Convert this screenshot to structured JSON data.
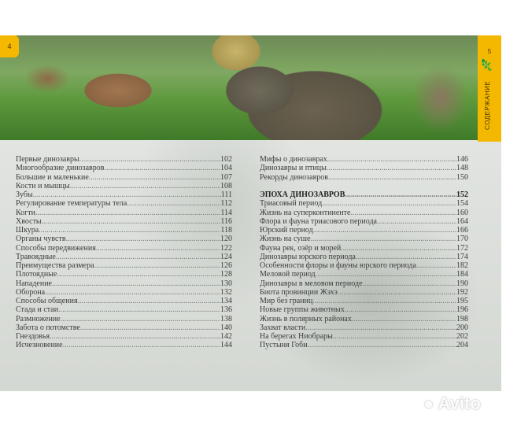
{
  "pages": {
    "left_number": "4",
    "right_number": "5",
    "section_tab": "СОДЕРЖАНИЕ"
  },
  "accent_color": "#f5b800",
  "toc_left": [
    {
      "title": "Первые динозавры",
      "page": "102"
    },
    {
      "title": "Многообразие динозавров",
      "page": "104"
    },
    {
      "title": "Большие и маленькие",
      "page": "107"
    },
    {
      "title": "Кости и мышцы",
      "page": "108"
    },
    {
      "title": "Зубы",
      "page": "111"
    },
    {
      "title": "Регулирование температуры тела",
      "page": "112"
    },
    {
      "title": "Когти",
      "page": "114"
    },
    {
      "title": "Хвосты",
      "page": "116"
    },
    {
      "title": "Шкура",
      "page": "118"
    },
    {
      "title": "Органы чувств",
      "page": "120"
    },
    {
      "title": "Способы передвижения",
      "page": "122"
    },
    {
      "title": "Травоядные",
      "page": "124"
    },
    {
      "title": "Преимущества размера",
      "page": "126"
    },
    {
      "title": "Плотоядные",
      "page": "128"
    },
    {
      "title": "Нападение",
      "page": "130"
    },
    {
      "title": "Оборона",
      "page": "132"
    },
    {
      "title": "Способы общения",
      "page": "134"
    },
    {
      "title": "Стада и стаи",
      "page": "136"
    },
    {
      "title": "Размножение",
      "page": "138"
    },
    {
      "title": "Забота о потомстве",
      "page": "140"
    },
    {
      "title": "Гнездовья",
      "page": "142"
    },
    {
      "title": "Исчезновение",
      "page": "144"
    }
  ],
  "toc_right_top": [
    {
      "title": "Мифы о динозаврах",
      "page": "146"
    },
    {
      "title": "Динозавры и птицы",
      "page": "148"
    },
    {
      "title": "Рекорды динозавров",
      "page": "150"
    }
  ],
  "toc_right_heading": {
    "title": "ЭПОХА ДИНОЗАВРОВ",
    "page": "152"
  },
  "toc_right": [
    {
      "title": "Триасовый период",
      "page": "154"
    },
    {
      "title": "Жизнь на суперконтиненте",
      "page": "160"
    },
    {
      "title": "Флора и фауна триасового периода",
      "page": "164"
    },
    {
      "title": "Юрский период",
      "page": "166"
    },
    {
      "title": "Жизнь на суше",
      "page": "170"
    },
    {
      "title": "Фауна рек, озёр и морей",
      "page": "172"
    },
    {
      "title": "Динозавры юрского периода",
      "page": "174"
    },
    {
      "title": "Особенности флоры и фауны юрского периода",
      "page": "182"
    },
    {
      "title": "Меловой период",
      "page": "184"
    },
    {
      "title": "Динозавры в меловом периоде",
      "page": "190"
    },
    {
      "title": "Биота провинции Жэхэ",
      "page": "192"
    },
    {
      "title": "Мир без границ",
      "page": "195"
    },
    {
      "title": "Новые группы животных",
      "page": "196"
    },
    {
      "title": "Жизнь в полярных районах",
      "page": "198"
    },
    {
      "title": "Захват власти",
      "page": "200"
    },
    {
      "title": "На берегах Ниобрары",
      "page": "202"
    },
    {
      "title": "Пустыня Гоби",
      "page": "204"
    }
  ],
  "watermark": "Avito"
}
